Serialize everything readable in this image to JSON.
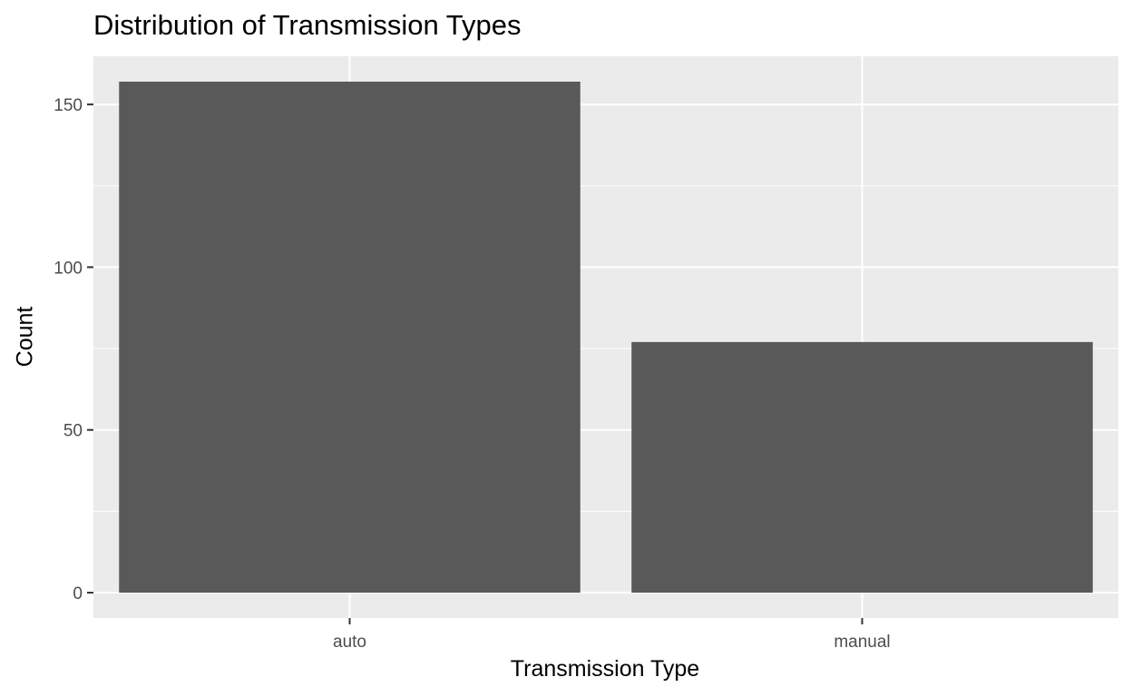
{
  "chart_data": {
    "type": "bar",
    "title": "Distribution of Transmission Types",
    "xlabel": "Transmission Type",
    "ylabel": "Count",
    "categories": [
      "auto",
      "manual"
    ],
    "values": [
      157,
      77
    ],
    "ylim": [
      -7.8,
      164.8
    ],
    "yticks": [
      0,
      50,
      100,
      150
    ],
    "grid": true,
    "legend": "none",
    "colors": {
      "bar": "#595959",
      "panel": "#ebebeb",
      "grid": "#ffffff"
    }
  }
}
